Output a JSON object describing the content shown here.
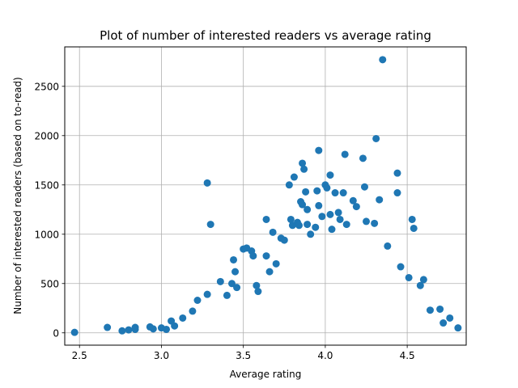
{
  "chart_data": {
    "type": "scatter",
    "title": "Plot of number of interested readers vs average rating",
    "xlabel": "Average rating",
    "ylabel": "Number of interested readers (based on to-read)",
    "xlim": [
      2.41,
      4.86
    ],
    "ylim": [
      -125,
      2900
    ],
    "xticks": [
      2.5,
      3.0,
      3.5,
      4.0,
      4.5
    ],
    "xtick_labels": [
      "2.5",
      "3.0",
      "3.5",
      "4.0",
      "4.5"
    ],
    "yticks": [
      0,
      500,
      1000,
      1500,
      2000,
      2500
    ],
    "ytick_labels": [
      "0",
      "500",
      "1000",
      "1500",
      "2000",
      "2500"
    ],
    "grid": true,
    "marker_color": "#1f77b4",
    "series": [
      {
        "points": [
          [
            2.47,
            5
          ],
          [
            2.67,
            55
          ],
          [
            2.76,
            20
          ],
          [
            2.8,
            30
          ],
          [
            2.84,
            55
          ],
          [
            2.84,
            35
          ],
          [
            2.93,
            60
          ],
          [
            2.95,
            40
          ],
          [
            3.0,
            50
          ],
          [
            3.03,
            35
          ],
          [
            3.06,
            120
          ],
          [
            3.08,
            70
          ],
          [
            3.13,
            150
          ],
          [
            3.19,
            220
          ],
          [
            3.22,
            330
          ],
          [
            3.28,
            390
          ],
          [
            3.28,
            1520
          ],
          [
            3.3,
            1100
          ],
          [
            3.36,
            520
          ],
          [
            3.4,
            380
          ],
          [
            3.43,
            500
          ],
          [
            3.44,
            740
          ],
          [
            3.45,
            620
          ],
          [
            3.46,
            460
          ],
          [
            3.5,
            850
          ],
          [
            3.52,
            860
          ],
          [
            3.55,
            830
          ],
          [
            3.56,
            780
          ],
          [
            3.58,
            480
          ],
          [
            3.59,
            420
          ],
          [
            3.64,
            1150
          ],
          [
            3.64,
            780
          ],
          [
            3.66,
            620
          ],
          [
            3.68,
            1020
          ],
          [
            3.7,
            700
          ],
          [
            3.73,
            960
          ],
          [
            3.75,
            940
          ],
          [
            3.78,
            1500
          ],
          [
            3.79,
            1150
          ],
          [
            3.8,
            1090
          ],
          [
            3.81,
            1580
          ],
          [
            3.83,
            1120
          ],
          [
            3.84,
            1090
          ],
          [
            3.85,
            1330
          ],
          [
            3.86,
            1720
          ],
          [
            3.86,
            1300
          ],
          [
            3.87,
            1660
          ],
          [
            3.88,
            1430
          ],
          [
            3.89,
            1250
          ],
          [
            3.89,
            1100
          ],
          [
            3.91,
            1000
          ],
          [
            3.94,
            1070
          ],
          [
            3.95,
            1440
          ],
          [
            3.96,
            1850
          ],
          [
            3.96,
            1290
          ],
          [
            3.98,
            1180
          ],
          [
            4.0,
            1500
          ],
          [
            4.01,
            1470
          ],
          [
            4.03,
            1600
          ],
          [
            4.03,
            1200
          ],
          [
            4.04,
            1050
          ],
          [
            4.06,
            1420
          ],
          [
            4.08,
            1220
          ],
          [
            4.09,
            1150
          ],
          [
            4.11,
            1420
          ],
          [
            4.12,
            1810
          ],
          [
            4.13,
            1100
          ],
          [
            4.17,
            1340
          ],
          [
            4.19,
            1280
          ],
          [
            4.23,
            1770
          ],
          [
            4.24,
            1480
          ],
          [
            4.25,
            1130
          ],
          [
            4.3,
            1110
          ],
          [
            4.31,
            1970
          ],
          [
            4.33,
            1350
          ],
          [
            4.35,
            2770
          ],
          [
            4.38,
            880
          ],
          [
            4.44,
            1620
          ],
          [
            4.44,
            1420
          ],
          [
            4.46,
            670
          ],
          [
            4.51,
            560
          ],
          [
            4.53,
            1150
          ],
          [
            4.54,
            1060
          ],
          [
            4.58,
            480
          ],
          [
            4.6,
            540
          ],
          [
            4.64,
            230
          ],
          [
            4.7,
            240
          ],
          [
            4.72,
            100
          ],
          [
            4.76,
            150
          ],
          [
            4.81,
            50
          ]
        ]
      }
    ]
  }
}
